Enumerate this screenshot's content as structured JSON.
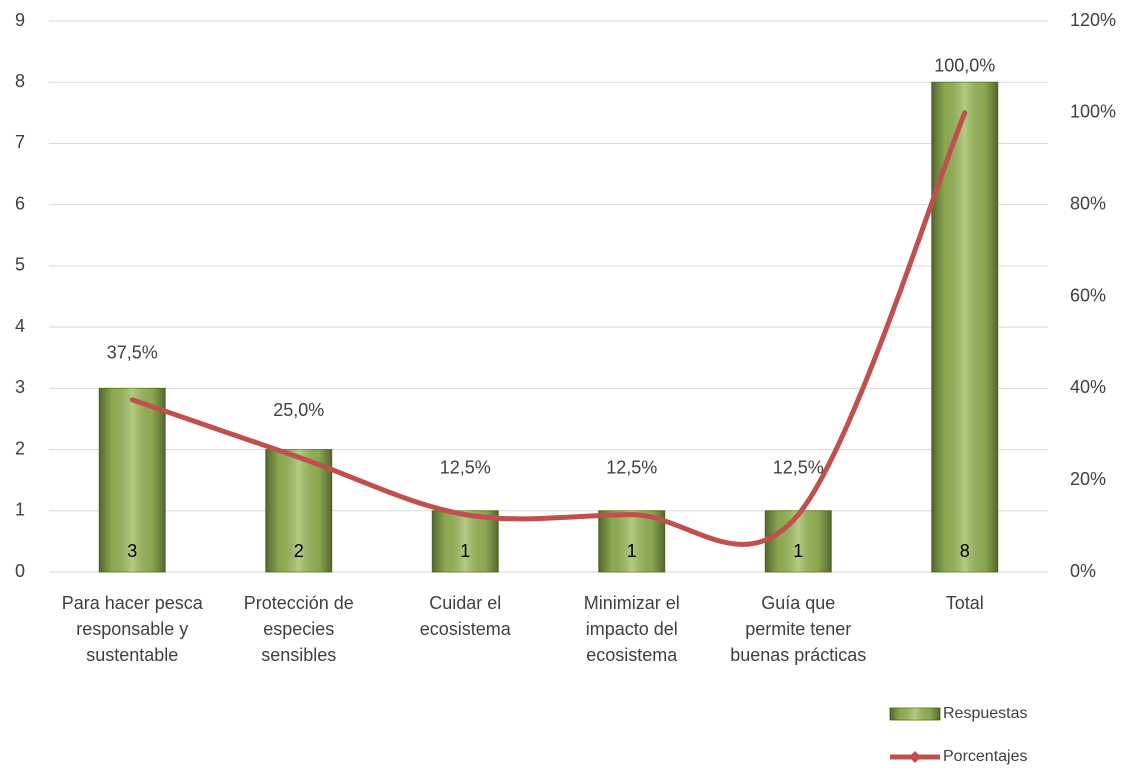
{
  "chart_data": {
    "type": "bar-line",
    "categories": [
      [
        "Para hacer pesca",
        "responsable y",
        "sustentable"
      ],
      [
        "Protección de",
        "especies",
        "sensibles"
      ],
      [
        "Cuidar el",
        "ecosistema"
      ],
      [
        "Minimizar el",
        "impacto del",
        "ecosistema"
      ],
      [
        "Guía que",
        "permite tener",
        "buenas prácticas"
      ],
      [
        "Total"
      ]
    ],
    "series": [
      {
        "name": "Respuestas",
        "type": "bar",
        "color": "#9bbb59",
        "values": [
          3,
          2,
          1,
          1,
          1,
          8
        ]
      },
      {
        "name": "Porcentajes",
        "type": "line",
        "axis": "y2",
        "color": "#c0504d",
        "values": [
          37.5,
          25,
          12.5,
          12.5,
          12.5,
          100
        ],
        "value_labels": [
          "37,5%",
          "25,0%",
          "12,5%",
          "12,5%",
          "12,5%",
          "100,0%"
        ]
      }
    ],
    "ylim": [
      0,
      9
    ],
    "yticks": [
      0,
      1,
      2,
      3,
      4,
      5,
      6,
      7,
      8,
      9
    ],
    "y2lim": [
      0,
      120
    ],
    "y2ticks": [
      {
        "value": 0,
        "label": "0%"
      },
      {
        "value": 20,
        "label": "20%"
      },
      {
        "value": 40,
        "label": "40%"
      },
      {
        "value": 60,
        "label": "60%"
      },
      {
        "value": 80,
        "label": "80%"
      },
      {
        "value": 100,
        "label": "100%"
      },
      {
        "value": 120,
        "label": "120%"
      }
    ],
    "grid": true,
    "legend": "bottom-right"
  }
}
